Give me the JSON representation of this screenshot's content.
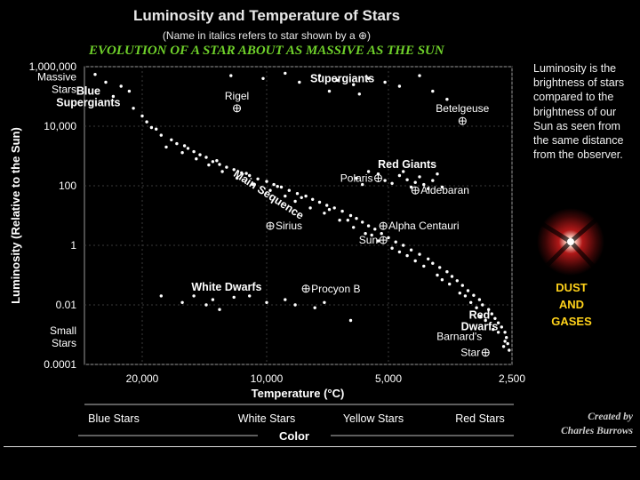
{
  "title": "Luminosity and Temperature of Stars",
  "subtitle": "(Name in italics refers to star shown by a ⊕)",
  "evolution_caption": "EVOLUTION OF A STAR ABOUT AS MASSIVE AS THE SUN",
  "side_note": "Luminosity is the brightness of stars compared to the brightness of our Sun as seen from the same distance from the observer.",
  "dust_label": [
    "DUST",
    "AND",
    "GASES"
  ],
  "credit": [
    "Created by",
    "Charles Burrows"
  ],
  "colors": {
    "background": "#000000",
    "accent_green": "#6fd12a",
    "dust_yellow": "#ffd21a",
    "text": "#ffffff"
  },
  "chart_data": {
    "type": "scatter",
    "xlabel": "Temperature (°C)",
    "ylabel": "Luminosity (Relative to the Sun)",
    "x_axis_reversed": true,
    "x_ticks": [
      {
        "value": 20000,
        "label": "20,000"
      },
      {
        "value": 10000,
        "label": "10,000"
      },
      {
        "value": 5000,
        "label": "5,000"
      },
      {
        "value": 2500,
        "label": "2,500"
      }
    ],
    "y_scale": "log",
    "ylim": [
      0.0001,
      1000000
    ],
    "y_ticks": [
      {
        "value": 1000000,
        "label": "1,000,000"
      },
      {
        "value": 10000,
        "label": "10,000"
      },
      {
        "value": 100,
        "label": "100"
      },
      {
        "value": 1,
        "label": "1"
      },
      {
        "value": 0.01,
        "label": "0.01"
      },
      {
        "value": 0.0001,
        "label": "0.0001"
      }
    ],
    "y_extra_labels": [
      {
        "label": "Massive Stars",
        "value": 300000
      },
      {
        "label": "Small Stars",
        "value": 0.0009
      }
    ],
    "color_axis_title": "Color",
    "color_bands": [
      "Blue Stars",
      "White Stars",
      "Yellow Stars",
      "Red Stars"
    ],
    "region_labels": [
      {
        "label": "Blue Supergiants",
        "x": 27000,
        "y": 100000
      },
      {
        "label": "Supergiants",
        "x": 6500,
        "y": 300000
      },
      {
        "label": "Red Giants",
        "x": 4500,
        "y": 400
      },
      {
        "label": "Main Sequence",
        "x": 10000,
        "y": 40
      },
      {
        "label": "White Dwarfs",
        "x": 12500,
        "y": 0.03
      },
      {
        "label": "Red Dwarfs",
        "x": 3000,
        "y": 0.003
      }
    ],
    "named_stars": [
      {
        "name": "Rigel",
        "x": 11800,
        "y": 40000
      },
      {
        "name": "Betelgeuse",
        "x": 3300,
        "y": 15000
      },
      {
        "name": "Polaris",
        "x": 5300,
        "y": 180
      },
      {
        "name": "Aldebaran",
        "x": 4300,
        "y": 70
      },
      {
        "name": "Sirius",
        "x": 9800,
        "y": 4.5
      },
      {
        "name": "Alpha Centauri",
        "x": 5150,
        "y": 4.5
      },
      {
        "name": "Sun",
        "x": 5150,
        "y": 1.5
      },
      {
        "name": "Procyon B",
        "x": 8000,
        "y": 0.035
      },
      {
        "name": "Barnard's Star",
        "x": 2900,
        "y": 0.00025
      }
    ],
    "points_note": "approximate star distribution",
    "points": [
      [
        28000,
        700000
      ],
      [
        26000,
        550000
      ],
      [
        24500,
        300000
      ],
      [
        22500,
        220000
      ],
      [
        21500,
        150000
      ],
      [
        23500,
        100000
      ],
      [
        21000,
        40000
      ],
      [
        20000,
        22000
      ],
      [
        19500,
        14000
      ],
      [
        18500,
        8000
      ],
      [
        18000,
        5000
      ],
      [
        17000,
        3500
      ],
      [
        16500,
        2600
      ],
      [
        15500,
        1800
      ],
      [
        15000,
        1400
      ],
      [
        14500,
        1100
      ],
      [
        14000,
        900
      ],
      [
        13500,
        650
      ],
      [
        13000,
        520
      ],
      [
        12500,
        420
      ],
      [
        12000,
        350
      ],
      [
        11500,
        270
      ],
      [
        11000,
        220
      ],
      [
        10500,
        170
      ],
      [
        10000,
        140
      ],
      [
        9600,
        110
      ],
      [
        9200,
        90
      ],
      [
        8800,
        70
      ],
      [
        8400,
        55
      ],
      [
        8000,
        45
      ],
      [
        7700,
        35
      ],
      [
        7400,
        28
      ],
      [
        7100,
        22
      ],
      [
        6800,
        18
      ],
      [
        6500,
        14
      ],
      [
        6200,
        10
      ],
      [
        6000,
        8
      ],
      [
        5800,
        6
      ],
      [
        5600,
        4.5
      ],
      [
        5400,
        3.5
      ],
      [
        5200,
        2.5
      ],
      [
        5000,
        1.8
      ],
      [
        4800,
        1.3
      ],
      [
        4600,
        1.0
      ],
      [
        4400,
        0.7
      ],
      [
        4200,
        0.5
      ],
      [
        4000,
        0.35
      ],
      [
        3900,
        0.25
      ],
      [
        3750,
        0.18
      ],
      [
        3600,
        0.13
      ],
      [
        3500,
        0.09
      ],
      [
        3400,
        0.065
      ],
      [
        3300,
        0.045
      ],
      [
        3200,
        0.03
      ],
      [
        3100,
        0.021
      ],
      [
        3000,
        0.015
      ],
      [
        2950,
        0.01
      ],
      [
        2850,
        0.007
      ],
      [
        2800,
        0.005
      ],
      [
        2750,
        0.0035
      ],
      [
        2700,
        0.0025
      ],
      [
        2650,
        0.0018
      ],
      [
        2600,
        0.0012
      ],
      [
        2580,
        0.0008
      ],
      [
        2560,
        0.0005
      ],
      [
        2540,
        0.0003
      ],
      [
        17500,
        2000
      ],
      [
        16000,
        1300
      ],
      [
        14800,
        800
      ],
      [
        13800,
        500
      ],
      [
        12800,
        300
      ],
      [
        11800,
        180
      ],
      [
        10800,
        110
      ],
      [
        9800,
        70
      ],
      [
        9000,
        45
      ],
      [
        8500,
        30
      ],
      [
        7800,
        18
      ],
      [
        7200,
        12
      ],
      [
        6600,
        7
      ],
      [
        6100,
        4
      ],
      [
        5700,
        2.5
      ],
      [
        5300,
        1.4
      ],
      [
        4900,
        0.8
      ],
      [
        4500,
        0.45
      ],
      [
        4100,
        0.2
      ],
      [
        3800,
        0.1
      ],
      [
        3550,
        0.05
      ],
      [
        3250,
        0.02
      ],
      [
        3050,
        0.008
      ],
      [
        2900,
        0.003
      ],
      [
        2700,
        0.0012
      ],
      [
        2600,
        0.0006
      ],
      [
        19000,
        9000
      ],
      [
        15800,
        2200
      ],
      [
        13200,
        700
      ],
      [
        11200,
        260
      ],
      [
        9400,
        95
      ],
      [
        8200,
        40
      ],
      [
        7000,
        16
      ],
      [
        6300,
        7
      ],
      [
        5500,
        2.2
      ],
      [
        4700,
        0.6
      ],
      [
        4300,
        0.3
      ],
      [
        3700,
        0.07
      ],
      [
        3350,
        0.025
      ],
      [
        3150,
        0.012
      ],
      [
        2980,
        0.004
      ],
      [
        2780,
        0.0015
      ],
      [
        2620,
        0.0004
      ],
      [
        12200,
        500000
      ],
      [
        10200,
        400000
      ],
      [
        9000,
        600000
      ],
      [
        8300,
        300000
      ],
      [
        7400,
        500000
      ],
      [
        6700,
        350000
      ],
      [
        6100,
        250000
      ],
      [
        5600,
        400000
      ],
      [
        5100,
        300000
      ],
      [
        4700,
        220000
      ],
      [
        4200,
        500000
      ],
      [
        3900,
        150000
      ],
      [
        3600,
        80000
      ],
      [
        7000,
        150000
      ],
      [
        5900,
        120000
      ],
      [
        5600,
        300
      ],
      [
        5300,
        250
      ],
      [
        5100,
        150
      ],
      [
        4900,
        120
      ],
      [
        4700,
        220
      ],
      [
        4500,
        160
      ],
      [
        4400,
        90
      ],
      [
        4300,
        130
      ],
      [
        4200,
        200
      ],
      [
        4100,
        110
      ],
      [
        4000,
        80
      ],
      [
        3900,
        150
      ],
      [
        3800,
        250
      ],
      [
        6000,
        180
      ],
      [
        5800,
        110
      ],
      [
        4600,
        300
      ],
      [
        3700,
        90
      ],
      [
        18000,
        0.02
      ],
      [
        15000,
        0.02
      ],
      [
        13500,
        0.015
      ],
      [
        12000,
        0.018
      ],
      [
        11000,
        0.02
      ],
      [
        10000,
        0.012
      ],
      [
        9000,
        0.015
      ],
      [
        8500,
        0.01
      ],
      [
        7600,
        0.008
      ],
      [
        7200,
        0.012
      ],
      [
        14000,
        0.01
      ],
      [
        16000,
        0.012
      ],
      [
        6200,
        0.003
      ],
      [
        13000,
        0.007
      ]
    ]
  }
}
